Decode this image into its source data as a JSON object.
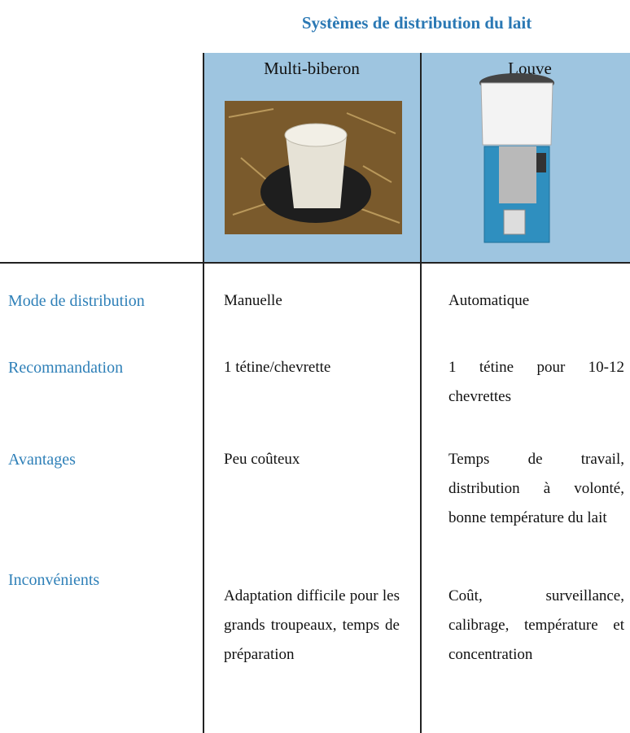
{
  "title": "Systèmes de distribution du lait",
  "table": {
    "header": [
      "Multi-biberon",
      "Louve"
    ],
    "rows": [
      {
        "label": "Mode de distribution",
        "cells": [
          "Manuelle",
          "Automatique"
        ]
      },
      {
        "label": "Recommandation",
        "cells": [
          "1 tétine/chevrette",
          "1 tétine pour 10-12 chevrettes"
        ]
      },
      {
        "label": "Avantages",
        "cells": [
          "Peu coûteux",
          "Temps de travail, distribution à volonté, bonne température du lait"
        ]
      },
      {
        "label": "Inconvénients",
        "cells": [
          "Adaptation difficile pour les grands troupeaux, temps de préparation",
          "Coût, surveillance, calibrage, température et concentration"
        ]
      }
    ]
  }
}
